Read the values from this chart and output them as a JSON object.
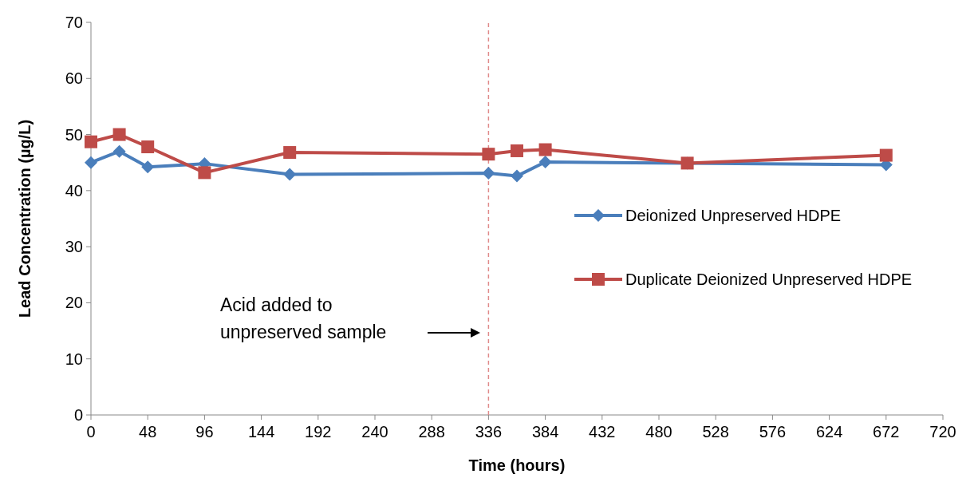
{
  "chart_data": {
    "type": "line",
    "xlabel": "Time (hours)",
    "ylabel": "Lead Concentration (µg/L)",
    "x": [
      0,
      24,
      48,
      96,
      168,
      336,
      360,
      384,
      504,
      672
    ],
    "series": [
      {
        "name": "Deionized Unpreserved HDPE",
        "color": "#4a7ebb",
        "marker": "diamond",
        "values": [
          45,
          47,
          44.2,
          44.8,
          42.9,
          43.1,
          42.6,
          45.1,
          44.9,
          44.6
        ]
      },
      {
        "name": "Duplicate Deionized Unpreserved HDPE",
        "color": "#be4b48",
        "marker": "square",
        "values": [
          48.7,
          50,
          47.8,
          43.2,
          46.8,
          46.5,
          47.1,
          47.3,
          44.9,
          46.3
        ]
      }
    ],
    "xlim": [
      0,
      720
    ],
    "xticks": [
      0,
      48,
      96,
      144,
      192,
      240,
      288,
      336,
      384,
      432,
      480,
      528,
      576,
      624,
      672,
      720
    ],
    "ylim": [
      0,
      70
    ],
    "yticks": [
      0,
      10,
      20,
      30,
      40,
      50,
      60,
      70
    ],
    "ref_lines": [
      {
        "axis": "x",
        "value": 336,
        "color": "#e08a8a",
        "line_style": "dashed"
      }
    ],
    "annotations": [
      "Acid added to unpreserved sample"
    ],
    "legend": "right",
    "grid": false,
    "line_style": "solid"
  }
}
